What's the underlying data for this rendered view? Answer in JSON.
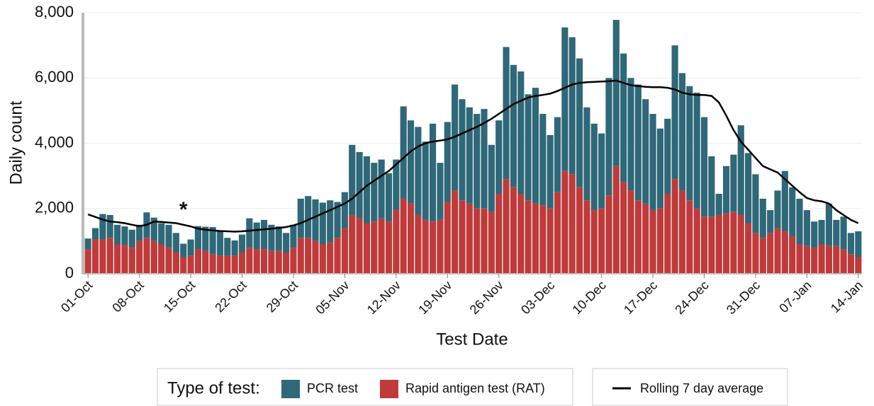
{
  "chart_data": {
    "type": "bar",
    "stacked": true,
    "x_label": "Test Date",
    "y_label": "Daily count",
    "legend_title": "Type of test:",
    "annotations": [
      {
        "text": "*",
        "category_index": 13
      }
    ],
    "categories": [
      "01-Oct",
      null,
      null,
      null,
      null,
      null,
      null,
      "08-Oct",
      null,
      null,
      null,
      null,
      null,
      null,
      "15-Oct",
      null,
      null,
      null,
      null,
      null,
      null,
      "22-Oct",
      null,
      null,
      null,
      null,
      null,
      null,
      "29-Oct",
      null,
      null,
      null,
      null,
      null,
      null,
      "05-Nov",
      null,
      null,
      null,
      null,
      null,
      null,
      "12-Nov",
      null,
      null,
      null,
      null,
      null,
      null,
      "19-Nov",
      null,
      null,
      null,
      null,
      null,
      null,
      "26-Nov",
      null,
      null,
      null,
      null,
      null,
      null,
      "03-Dec",
      null,
      null,
      null,
      null,
      null,
      null,
      "10-Dec",
      null,
      null,
      null,
      null,
      null,
      null,
      "17-Dec",
      null,
      null,
      null,
      null,
      null,
      null,
      "24-Dec",
      null,
      null,
      null,
      null,
      null,
      null,
      "31-Dec",
      null,
      null,
      null,
      null,
      null,
      null,
      "07-Jan",
      null,
      null,
      null,
      null,
      null,
      null,
      "14-Jan"
    ],
    "series": [
      {
        "name": "PCR test",
        "color": "#2f6878",
        "values": [
          330,
          350,
          780,
          700,
          600,
          570,
          550,
          500,
          780,
          720,
          650,
          700,
          600,
          420,
          500,
          710,
          740,
          830,
          750,
          550,
          470,
          550,
          900,
          820,
          900,
          800,
          750,
          600,
          700,
          1200,
          1280,
          1280,
          1280,
          1300,
          1100,
          1100,
          2150,
          2030,
          2050,
          1800,
          1800,
          1480,
          1550,
          2830,
          2550,
          2700,
          2400,
          3000,
          1750,
          2450,
          3250,
          3100,
          2950,
          2900,
          3050,
          2050,
          2250,
          4050,
          3750,
          3750,
          3250,
          3550,
          2800,
          2250,
          2300,
          4400,
          4200,
          3950,
          2850,
          2650,
          2300,
          3600,
          4480,
          3950,
          3450,
          3550,
          3200,
          2950,
          2450,
          2300,
          4100,
          3600,
          3500,
          3550,
          3050,
          1850,
          650,
          1450,
          1750,
          2750,
          2150,
          1800,
          1200,
          700,
          1150,
          1850,
          1500,
          1400,
          1100,
          800,
          750,
          1300,
          800,
          1000,
          650,
          800
        ]
      },
      {
        "name": "Rapid antigen test (RAT)",
        "color": "#bf3a3a",
        "values": [
          750,
          1050,
          1050,
          1100,
          900,
          880,
          800,
          1000,
          1100,
          1000,
          900,
          800,
          650,
          500,
          550,
          750,
          700,
          600,
          550,
          550,
          550,
          650,
          800,
          750,
          750,
          700,
          700,
          650,
          800,
          1100,
          1100,
          1000,
          900,
          950,
          1100,
          1400,
          1800,
          1700,
          1550,
          1600,
          1700,
          1600,
          1950,
          2300,
          2150,
          1800,
          1650,
          1600,
          1650,
          2200,
          2550,
          2250,
          2150,
          2000,
          2000,
          1900,
          2450,
          2900,
          2650,
          2450,
          2250,
          2150,
          2100,
          2000,
          2500,
          3150,
          3050,
          2650,
          2250,
          1950,
          2000,
          2400,
          3300,
          2800,
          2550,
          2250,
          2150,
          1950,
          2000,
          2450,
          2900,
          2550,
          2250,
          2000,
          1750,
          1750,
          1800,
          1850,
          1900,
          1800,
          1550,
          1250,
          1100,
          1250,
          1400,
          1300,
          1150,
          900,
          850,
          800,
          900,
          850,
          850,
          750,
          600,
          500
        ]
      },
      {
        "name": "Rolling 7 day average",
        "type": "line",
        "color": "#000000",
        "values": [
          1820,
          1740,
          1660,
          1600,
          1580,
          1550,
          1500,
          1460,
          1500,
          1600,
          1590,
          1570,
          1550,
          1500,
          1450,
          1380,
          1350,
          1330,
          1310,
          1300,
          1290,
          1300,
          1320,
          1340,
          1360,
          1380,
          1400,
          1430,
          1480,
          1550,
          1650,
          1750,
          1850,
          1950,
          2050,
          2150,
          2300,
          2500,
          2700,
          2850,
          3000,
          3150,
          3350,
          3550,
          3750,
          3900,
          4000,
          4050,
          4080,
          4120,
          4200,
          4300,
          4400,
          4500,
          4620,
          4750,
          4900,
          5050,
          5200,
          5300,
          5400,
          5450,
          5480,
          5520,
          5600,
          5700,
          5800,
          5850,
          5870,
          5880,
          5890,
          5900,
          5920,
          5850,
          5780,
          5750,
          5730,
          5720,
          5720,
          5700,
          5650,
          5550,
          5500,
          5480,
          5480,
          5450,
          5250,
          4850,
          4400,
          4050,
          3800,
          3550,
          3300,
          3200,
          3100,
          2900,
          2700,
          2500,
          2320,
          2250,
          2220,
          2150,
          1950,
          1800,
          1650,
          1550
        ]
      }
    ],
    "ylim": [
      0,
      8000
    ],
    "yticks": [
      0,
      {
        "value": 2000,
        "label": "2,000"
      },
      {
        "value": 4000,
        "label": "4,000"
      },
      {
        "value": 6000,
        "label": "6,000"
      },
      {
        "value": 8000,
        "label": "8,000"
      }
    ],
    "grid": true
  }
}
